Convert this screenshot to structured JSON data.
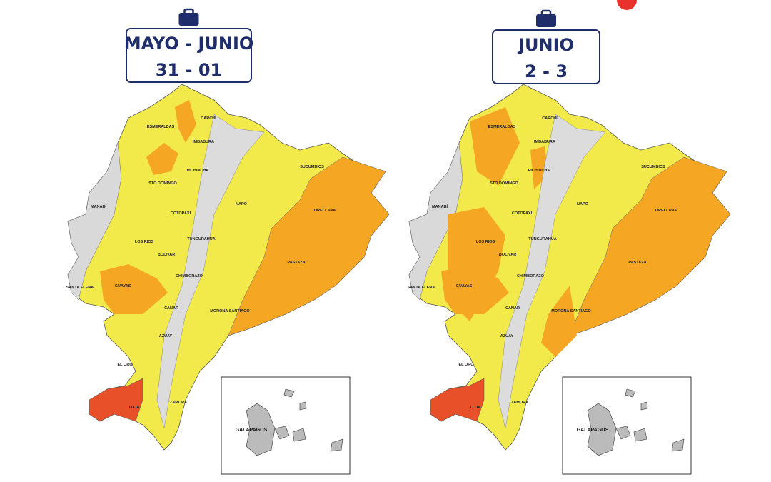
{
  "maps": [
    {
      "header": {
        "line1": "MAYO - JUNIO",
        "line2": "31 - 01"
      },
      "labels": [
        "ESMERALDAS",
        "CARCHI",
        "IMBABURA",
        "PICHINCHA",
        "STO DOMINGO",
        "SUCUMBIOS",
        "MANABÍ",
        "NAPO",
        "ORELLANA",
        "COTOPAXI",
        "LOS RIOS",
        "TUNGURAHUA",
        "BOLIVAR",
        "PASTAZA",
        "CHIMBORAZO",
        "SANTA ELENA",
        "GUAYAS",
        "CAÑAR",
        "MORONA SANTIAGO",
        "AZUAY",
        "EL ORO",
        "LOJA",
        "ZAMORA"
      ],
      "inset_label": "GALAPAGOS"
    },
    {
      "header": {
        "line1": "JUNIO",
        "line2": "2 - 3"
      },
      "labels": [
        "ESMERALDAS",
        "CARCHI",
        "IMBABURA",
        "PICHINCHA",
        "STO DOMINGO",
        "SUCUMBIOS",
        "MANABÍ",
        "NAPO",
        "ORELLANA",
        "COTOPAXI",
        "LOS RIOS",
        "TUNGURAHUA",
        "BOLIVAR",
        "PASTAZA",
        "CHIMBORAZO",
        "SANTA ELENA",
        "GUAYAS",
        "CAÑAR",
        "MORONA SANTIAGO",
        "AZUAY",
        "EL ORO",
        "LOJA",
        "ZAMORA"
      ],
      "inset_label": "GALAPAGOS"
    }
  ]
}
